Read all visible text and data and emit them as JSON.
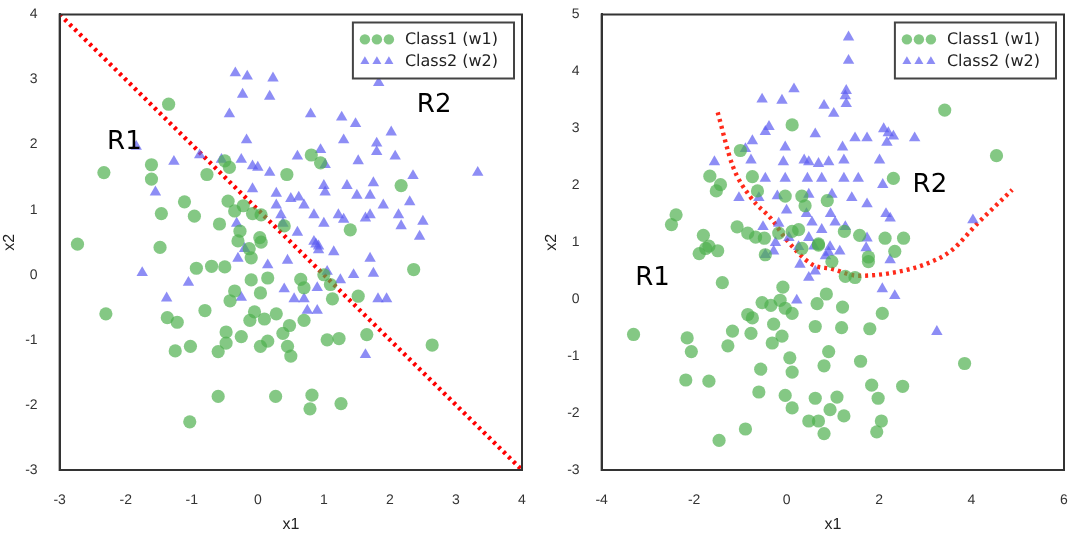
{
  "chart_data": [
    {
      "type": "scatter",
      "xlabel": "x1",
      "ylabel": "x2",
      "xlim": [
        -3,
        4
      ],
      "ylim": [
        -3,
        4
      ],
      "xticks": [
        -3,
        -2,
        -1,
        0,
        1,
        2,
        3,
        4
      ],
      "yticks": [
        -3,
        -2,
        -1,
        0,
        1,
        2,
        3,
        4
      ],
      "grid": false,
      "legend": "top right",
      "annotations": [
        "R1",
        "R2"
      ],
      "series": [
        {
          "name": "Class1 (w1)",
          "color": "#4daf4d",
          "marker": "circle",
          "x": [
            -1.35,
            -2.33,
            -2.73,
            -1.61,
            -1.61,
            -1.46,
            -1.11,
            -0.96,
            -1.48,
            -0.77,
            -0.5,
            -0.43,
            -0.45,
            -0.35,
            -0.22,
            -0.58,
            -0.08,
            0.05,
            0.44,
            0.81,
            0.95,
            2.17,
            1.4,
            -0.27,
            0.03,
            0.4,
            -0.3,
            -2.3,
            -1.37,
            -1.22,
            -0.93,
            -0.8,
            -1.02,
            -1.25,
            -0.6,
            -0.48,
            -0.48,
            -0.25,
            -0.42,
            -0.35,
            -0.1,
            -0.12,
            -0.05,
            0.1,
            0.04,
            0.15,
            0.28,
            0.15,
            0.04,
            0.38,
            0.45,
            0.5,
            0.48,
            0.7,
            0.65,
            0.7,
            1.0,
            1.1,
            1.13,
            1.05,
            1.23,
            1.52,
            1.65,
            2.36,
            2.64,
            -0.6,
            0.27,
            0.82,
            0.79,
            1.26,
            -1.03,
            -0.7,
            -0.5,
            0.05,
            -0.1,
            -0.13
          ],
          "values": [
            2.62,
            1.57,
            0.47,
            1.69,
            1.47,
            0.94,
            1.12,
            0.9,
            0.42,
            1.54,
            1.75,
            1.65,
            1.13,
            0.98,
            1.06,
            0.78,
            0.94,
            0.92,
            1.54,
            1.84,
            1.72,
            1.37,
            0.69,
            0.67,
            0.57,
            0.75,
            0.52,
            -0.6,
            -0.66,
            -0.73,
            0.1,
            -0.55,
            -1.1,
            -1.17,
            -1.18,
            -1.05,
            -0.88,
            -0.95,
            -0.4,
            -0.25,
            -0.08,
            -0.7,
            -0.57,
            -0.68,
            -0.28,
            -0.05,
            -0.6,
            -1.02,
            -1.1,
            -0.9,
            -1.1,
            -1.25,
            -0.78,
            -0.7,
            -0.07,
            -0.2,
            0.0,
            -0.15,
            -0.37,
            -1.0,
            -0.98,
            -0.33,
            -0.92,
            0.08,
            -1.08,
            -1.87,
            -1.87,
            -1.85,
            -2.06,
            -1.98,
            -2.26,
            0.13,
            0.12,
            0.5,
            0.26,
            0.4
          ]
        },
        {
          "name": "Class2 (w2)",
          "color": "#5a5af0",
          "marker": "triangle",
          "x": [
            -0.34,
            -0.16,
            0.23,
            -0.23,
            0.18,
            -0.43,
            1.83,
            0.8,
            1.27,
            1.48,
            2.02,
            1.3,
            1.8,
            1.8,
            2.08,
            -0.17,
            -1.84,
            -1.27,
            -0.88,
            -0.55,
            -0.25,
            -0.08,
            0,
            0.18,
            0.6,
            0.95,
            1.02,
            1.52,
            2.35,
            3.33,
            -1.55,
            -0.08,
            0.28,
            0.5,
            0.62,
            1.0,
            1.35,
            1.75,
            0.7,
            1.02,
            1.5,
            1.7,
            1.9,
            2.3,
            0.28,
            0.35,
            0.85,
            1.22,
            1.7,
            2.13,
            2.5,
            2.45,
            2.17,
            -0.32,
            0.38,
            1.0,
            0.6,
            1.3,
            1.63,
            0.85,
            0.92,
            -1.75,
            -1.05,
            -1.38,
            -0.25,
            -0.3,
            -0.2,
            0.15,
            0.45,
            0.88,
            0.92,
            1.05,
            1.15,
            1.25,
            1.45,
            1.7,
            1.75,
            0.4,
            0.55,
            0.7,
            0.75,
            0.9,
            0.9,
            1.82,
            1.95,
            1.63
          ],
          "values": [
            3.1,
            3.05,
            3.02,
            2.77,
            2.74,
            2.47,
            2.95,
            2.47,
            2.42,
            2.32,
            2.19,
            2.07,
            2.02,
            1.89,
            1.82,
            2.07,
            1.97,
            1.74,
            1.84,
            1.77,
            1.77,
            1.67,
            1.65,
            1.57,
            1.82,
            1.92,
            1.69,
            1.75,
            1.52,
            1.57,
            1.27,
            1.32,
            1.25,
            1.17,
            1.19,
            1.37,
            1.37,
            1.41,
            1.07,
            1.27,
            1.22,
            1.22,
            1.07,
            1.12,
            1.07,
            0.92,
            0.92,
            0.92,
            0.92,
            0.92,
            0.82,
            0.59,
            0.75,
            0.79,
            0.79,
            0.79,
            0.65,
            0.85,
            0.87,
            0.51,
            0.44,
            0.03,
            -0.12,
            -0.36,
            -0.35,
            0.25,
            0.4,
            0.15,
            0.22,
            0.47,
            0.38,
            0.05,
            0.35,
            -0.08,
            0.0,
            0.25,
            0.02,
            -0.22,
            -0.37,
            -0.37,
            -0.55,
            -0.55,
            -0.2,
            -0.37,
            -0.37,
            -1.23
          ]
        },
        {
          "type": "line",
          "color": "#ff0000",
          "line_style": "dotted",
          "marker": "none",
          "x": [
            -3,
            4
          ],
          "values": [
            4,
            -3
          ]
        }
      ]
    },
    {
      "type": "scatter",
      "xlabel": "x1",
      "ylabel": "x2",
      "xlim": [
        -4,
        6
      ],
      "ylim": [
        -3,
        5
      ],
      "xticks": [
        -4,
        -2,
        0,
        2,
        4,
        6
      ],
      "yticks": [
        -3,
        -2,
        -1,
        0,
        1,
        2,
        3,
        4,
        5
      ],
      "grid": false,
      "legend": "top right",
      "annotations": [
        "R2",
        "R1"
      ],
      "series": [
        {
          "name": "Class1 (w1)",
          "color": "#4daf4d",
          "marker": "circle",
          "x": [
            3.42,
            4.54,
            0.12,
            -1.0,
            -1.66,
            -1.43,
            -1.52,
            -0.74,
            -0.63,
            -0.03,
            0.33,
            0.4,
            2.31,
            -2.39,
            -2.49,
            -1.07,
            -0.84,
            -0.67,
            -0.48,
            -0.17,
            0.12,
            0.26,
            0.88,
            1.25,
            1.58,
            2.13,
            2.53,
            -1.8,
            -1.68,
            -1.89,
            -1.49,
            0.69,
            1.77,
            -1.75,
            -1.39,
            -0.46,
            0.33,
            0.69,
            0.98,
            1.77,
            2.34,
            1.27,
            1.48,
            -0.08,
            -0.53,
            -0.34,
            -0.14,
            0.12,
            -0.03,
            0.86,
            0.66,
            1.21,
            2.07,
            -0.84,
            -0.74,
            -0.77,
            -0.28,
            -0.1,
            -0.31,
            -1.17,
            -1.27,
            -2.15,
            -2.06,
            -3.31,
            -2.18,
            -1.68,
            0.62,
            1.19,
            1.8,
            0.07,
            0.91,
            0.81,
            1.6,
            0.12,
            -0.56,
            -0.6,
            -0.03,
            0.62,
            1.09,
            1.84,
            1.98,
            2.51,
            0.12,
            0.94,
            1.24,
            0.48,
            0.69,
            0.81,
            2.05,
            1.95,
            -0.89,
            -1.46,
            3.85
          ],
          "values": [
            3.32,
            2.52,
            3.06,
            2.61,
            2.16,
            2.01,
            1.9,
            2.15,
            1.9,
            1.81,
            1.81,
            1.64,
            2.12,
            1.48,
            1.31,
            1.27,
            1.16,
            1.09,
            1.07,
            1.16,
            1.19,
            1.22,
            1.73,
            1.19,
            1.12,
            1.07,
            1.07,
            1.12,
            0.93,
            0.8,
            0.85,
            0.97,
            0.74,
            0.89,
            0.29,
            0.78,
            0.89,
            0.95,
            0.66,
            0.66,
            0.84,
            0.4,
            0.38,
            0.21,
            -0.06,
            -0.11,
            -0.02,
            -0.25,
            -0.16,
            0.09,
            -0.08,
            -0.14,
            -0.25,
            -0.27,
            -0.33,
            -0.6,
            -0.44,
            -0.65,
            -0.77,
            -0.56,
            -0.82,
            -0.68,
            -0.92,
            -0.62,
            -1.42,
            -1.44,
            -0.48,
            -0.5,
            -0.52,
            -1.03,
            -0.92,
            -1.17,
            -1.09,
            -1.28,
            -1.23,
            -1.63,
            -1.69,
            -1.74,
            -1.72,
            -1.51,
            -1.74,
            -1.53,
            -1.91,
            -1.94,
            -2.05,
            -2.14,
            -2.14,
            -2.36,
            -2.14,
            -2.33,
            -2.28,
            -2.48,
            -1.13
          ]
        },
        {
          "name": "Class2 (w2)",
          "color": "#5a5af0",
          "marker": "triangle",
          "x": [
            1.34,
            1.34,
            1.29,
            1.27,
            1.29,
            0.16,
            -0.1,
            -0.53,
            0.81,
            1.02,
            -0.38,
            -0.46,
            0.62,
            1.48,
            1.74,
            2.1,
            2.2,
            2.31,
            2.77,
            2.17,
            -0.74,
            -0.89,
            -0.03,
            1.21,
            -1.56,
            -0.77,
            -0.07,
            0.38,
            0.48,
            0.91,
            1.24,
            2.01,
            0.69,
            -0.46,
            -0.03,
            0.45,
            0.76,
            1.24,
            1.55,
            2.08,
            -1.03,
            -0.6,
            -0.2,
            0.48,
            0.98,
            1.41,
            1.74,
            0.0,
            0.43,
            0.95,
            2.15,
            2.24,
            4.03,
            -0.51,
            -0.17,
            0.55,
            1.05,
            0.76,
            1.27,
            0.05,
            -0.24,
            0.59,
            0.91,
            -0.28,
            1.72,
            0.48,
            -0.46,
            0.26,
            0.29,
            0.48,
            0.62,
            0.94,
            1.15,
            0.84,
            1.74,
            2.24,
            2.07,
            2.34,
            0.22,
            3.25
          ],
          "values": [
            4.6,
            4.19,
            3.66,
            3.57,
            3.43,
            3.69,
            3.49,
            3.51,
            3.4,
            3.26,
            3.03,
            2.94,
            2.9,
            2.83,
            2.83,
            2.99,
            2.92,
            2.86,
            2.83,
            2.75,
            2.78,
            2.64,
            2.67,
            2.67,
            2.41,
            2.44,
            2.41,
            2.44,
            2.41,
            2.41,
            2.44,
            2.44,
            2.38,
            2.12,
            2.12,
            2.12,
            2.12,
            2.12,
            2.12,
            2.01,
            1.78,
            1.78,
            1.81,
            1.84,
            1.84,
            1.78,
            1.67,
            1.56,
            1.5,
            1.5,
            1.5,
            1.42,
            1.39,
            1.27,
            1.33,
            1.35,
            1.35,
            1.22,
            1.27,
            1.08,
            0.99,
            0.93,
            0.82,
            0.84,
            0.9,
            1.08,
            0.78,
            0.92,
            0.61,
            0.38,
            0.49,
            0.92,
            0.84,
            0.76,
            1.07,
            0.69,
            0.18,
            0.06,
            -0.02,
            -0.57
          ]
        },
        {
          "type": "line",
          "color": "#ff2a1a",
          "line_style": "dotted",
          "marker": "none",
          "x": [
            -1.49,
            -1.17,
            -0.77,
            -0.31,
            -0.03,
            0.55,
            0.98,
            1.55,
            2.27,
            2.99,
            3.56,
            4.13,
            4.88
          ],
          "values": [
            3.28,
            2.35,
            1.78,
            1.39,
            1.07,
            0.61,
            0.53,
            0.41,
            0.46,
            0.61,
            0.85,
            1.33,
            1.92
          ]
        }
      ]
    }
  ]
}
